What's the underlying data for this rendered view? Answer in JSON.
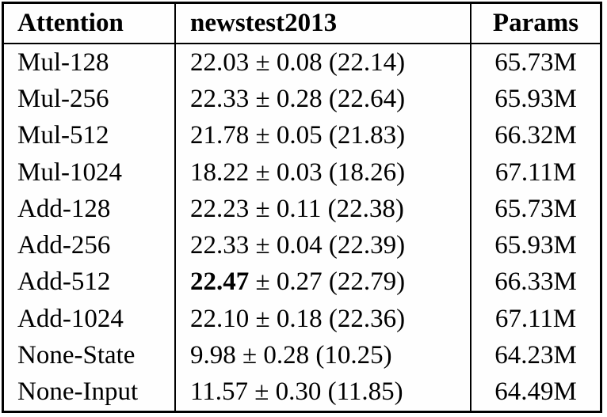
{
  "table": {
    "headers": {
      "attention": "Attention",
      "newstest": "newstest2013",
      "params": "Params"
    },
    "plus_minus": "±",
    "rows": [
      {
        "attention": "Mul-128",
        "mean": "22.03",
        "std": "0.08",
        "best_single": "22.14",
        "params": "65.73M",
        "mean_bold": false
      },
      {
        "attention": "Mul-256",
        "mean": "22.33",
        "std": "0.28",
        "best_single": "22.64",
        "params": "65.93M",
        "mean_bold": false
      },
      {
        "attention": "Mul-512",
        "mean": "21.78",
        "std": "0.05",
        "best_single": "21.83",
        "params": "66.32M",
        "mean_bold": false
      },
      {
        "attention": "Mul-1024",
        "mean": "18.22",
        "std": "0.03",
        "best_single": "18.26",
        "params": "67.11M",
        "mean_bold": false
      },
      {
        "attention": "Add-128",
        "mean": "22.23",
        "std": "0.11",
        "best_single": "22.38",
        "params": "65.73M",
        "mean_bold": false
      },
      {
        "attention": "Add-256",
        "mean": "22.33",
        "std": "0.04",
        "best_single": "22.39",
        "params": "65.93M",
        "mean_bold": false
      },
      {
        "attention": "Add-512",
        "mean": "22.47",
        "std": "0.27",
        "best_single": "22.79",
        "params": "66.33M",
        "mean_bold": true
      },
      {
        "attention": "Add-1024",
        "mean": "22.10",
        "std": "0.18",
        "best_single": "22.36",
        "params": "67.11M",
        "mean_bold": false
      },
      {
        "attention": "None-State",
        "mean": "9.98",
        "std": "0.28",
        "best_single": "10.25",
        "params": "64.23M",
        "mean_bold": false
      },
      {
        "attention": "None-Input",
        "mean": "11.57",
        "std": "0.30",
        "best_single": "11.85",
        "params": "64.49M",
        "mean_bold": false
      }
    ]
  },
  "chart_data": {
    "type": "table",
    "columns": [
      "Attention",
      "newstest2013",
      "Params"
    ],
    "rows": [
      [
        "Mul-128",
        "22.03 ± 0.08 (22.14)",
        "65.73M"
      ],
      [
        "Mul-256",
        "22.33 ± 0.28 (22.64)",
        "65.93M"
      ],
      [
        "Mul-512",
        "21.78 ± 0.05 (21.83)",
        "66.32M"
      ],
      [
        "Mul-1024",
        "18.22 ± 0.03 (18.26)",
        "67.11M"
      ],
      [
        "Add-128",
        "22.23 ± 0.11 (22.38)",
        "65.73M"
      ],
      [
        "Add-256",
        "22.33 ± 0.04 (22.39)",
        "65.93M"
      ],
      [
        "Add-512",
        "22.47 ± 0.27 (22.79)",
        "66.33M"
      ],
      [
        "Add-1024",
        "22.10 ± 0.18 (22.36)",
        "67.11M"
      ],
      [
        "None-State",
        "9.98 ± 0.28 (10.25)",
        "64.23M"
      ],
      [
        "None-Input",
        "11.57 ± 0.30 (11.85)",
        "64.49M"
      ]
    ]
  }
}
